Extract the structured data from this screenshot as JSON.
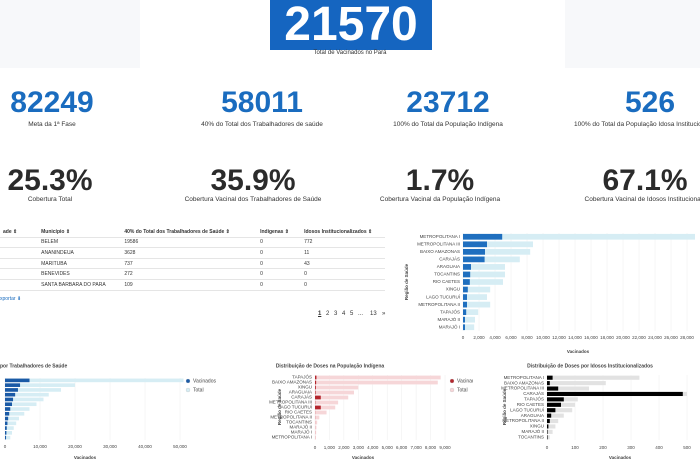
{
  "header": {
    "value": 21570,
    "label": "Total de Vacinados no Pará"
  },
  "kpis": [
    {
      "value": 82249,
      "label": "Meta da 1ª Fase"
    },
    {
      "value": 58011,
      "label": "40% do Total dos Trabalhadores de saúde"
    },
    {
      "value": 23712,
      "label": "100% do Total da População Indígena"
    },
    {
      "value": 526,
      "label": "100% do Total da População Idosa Institucionalizada"
    }
  ],
  "coverage": [
    {
      "value": "25.3%",
      "label": "Cobertura Total"
    },
    {
      "value": "35.9%",
      "label": "Cobertura Vacinal dos Trabalhadores de Saúde"
    },
    {
      "value": "1.7%",
      "label": "Cobertura Vacinal da População Indígena"
    },
    {
      "value": "67.1%",
      "label": "Cobertura Vacinal de Idosos Institucionais"
    }
  ],
  "table": {
    "columns": [
      "ade ⇕",
      "Município ⇕",
      "40% do Total dos Trabalhadores de Saúde ⇕",
      "Indígenas ⇕",
      "Idosos Institucionalizados ⇕"
    ],
    "rows": [
      [
        "BELEM",
        19586,
        0,
        772
      ],
      [
        "ANANINDEUA",
        3628,
        0,
        11
      ],
      [
        "MARITUBA",
        737,
        0,
        43
      ],
      [
        "BENEVIDES",
        272,
        0,
        0
      ],
      [
        "SANTA BARBARA DO PARA",
        109,
        0,
        0
      ]
    ],
    "export": "xportar ⬇",
    "pages": [
      "1",
      "2",
      "3",
      "4",
      "5",
      "...",
      "13",
      "»"
    ]
  },
  "charts": [
    {
      "type": "bar",
      "ylabel": "Região de Saúde",
      "xlabel": "Vacinados",
      "grid": true,
      "categories": [
        "METROPOLITANA I",
        "METROPOLITANA III",
        "BAIXO AMAZONAS",
        "CARAJÁS",
        "ARAGUAIA",
        "TOCANTINS",
        "RIO CAETES",
        "XINGU",
        "LAGO TUCURUÍ",
        "METROPOLITANA II",
        "TAPAJÓS",
        "MARAJÓ II",
        "MARAJÓ I"
      ],
      "series": [
        {
          "name": "Vacinados",
          "color": "#1f6fbf",
          "values": [
            4900,
            3000,
            2750,
            2700,
            1000,
            900,
            850,
            600,
            500,
            500,
            400,
            250,
            250
          ]
        },
        {
          "name": "Total",
          "color": "#d6edf4",
          "values": [
            29000,
            8750,
            8400,
            7100,
            5250,
            5250,
            5000,
            3400,
            3000,
            3400,
            1900,
            1500,
            1400
          ]
        }
      ],
      "xlim": [
        0,
        28000
      ],
      "xticks": [
        0,
        {
          "value": 2000,
          "label": "2,000"
        },
        {
          "value": 4000,
          "label": "4,000"
        },
        {
          "value": 6000,
          "label": "6,000"
        },
        {
          "value": 8000,
          "label": "8,000"
        },
        {
          "value": 10000,
          "label": "10,000"
        },
        {
          "value": 12000,
          "label": "12,000"
        },
        {
          "value": 14000,
          "label": "14,000"
        },
        {
          "value": 16000,
          "label": "16,000"
        },
        {
          "value": 18000,
          "label": "18,000"
        },
        {
          "value": 20000,
          "label": "20,000"
        },
        {
          "value": 22000,
          "label": "22,000"
        },
        {
          "value": 24000,
          "label": "24,000"
        },
        {
          "value": 26000,
          "label": "26,000"
        },
        {
          "value": 28000,
          "label": "28,000"
        }
      ]
    },
    {
      "type": "bar",
      "title": "por Trabalhadores de Saúde",
      "xlabel": "Vacinados",
      "grid": true,
      "legend": "right",
      "categories": [
        null,
        null,
        null,
        null,
        null,
        null,
        null,
        null,
        null,
        null,
        null,
        null,
        null
      ],
      "series": [
        {
          "name": "Vacinados",
          "color": "#1a5aa6",
          "values": [
            7000,
            4300,
            3700,
            2900,
            2300,
            2000,
            1500,
            1200,
            900,
            700,
            500,
            400,
            300
          ]
        },
        {
          "name": "Total",
          "color": "#d6edf4",
          "values": [
            51000,
            20000,
            16000,
            12500,
            11000,
            9000,
            7000,
            5500,
            4000,
            3200,
            2500,
            2000,
            1500
          ]
        }
      ],
      "xlim": [
        0,
        50000
      ],
      "xticks": [
        0,
        {
          "value": 10000,
          "label": "10,000"
        },
        {
          "value": 20000,
          "label": "20,000"
        },
        {
          "value": 30000,
          "label": "30,000"
        },
        {
          "value": 40000,
          "label": "40,000"
        },
        {
          "value": 50000,
          "label": "50,000"
        }
      ]
    },
    {
      "type": "bar",
      "title": "Distribuição de Doses na População Indígena",
      "ylabel": "Região de Saúde",
      "xlabel": "Vacinados",
      "grid": true,
      "legend": "right",
      "categories": [
        "TAPAJÓS",
        "BAIXO AMAZONAS",
        "XINGU",
        "ARAGUAIA",
        "CARAJÁS",
        "METROPOLITANA III",
        "LAGO TUCURUÍ",
        "RIO CAETES",
        "METROPOLITANA II",
        "TOCANTINS",
        "MARAJÓ II",
        "MARAJÓ I",
        "METROPOLITANA I"
      ],
      "series": [
        {
          "name": "Vacinados",
          "color": "#b3262d",
          "values": [
            100,
            80,
            60,
            40,
            400,
            20,
            400,
            10,
            10,
            5,
            5,
            5,
            5
          ]
        },
        {
          "name": "Total",
          "color": "#f6d6d8",
          "values": [
            8700,
            8500,
            3000,
            2700,
            2300,
            1600,
            1400,
            800,
            300,
            150,
            100,
            80,
            60
          ]
        }
      ],
      "xlim": [
        0,
        9000
      ],
      "xticks": [
        0,
        {
          "value": 1000,
          "label": "1,000"
        },
        {
          "value": 2000,
          "label": "2,000"
        },
        {
          "value": 3000,
          "label": "3,000"
        },
        {
          "value": 4000,
          "label": "4,000"
        },
        {
          "value": 5000,
          "label": "5,000"
        },
        {
          "value": 6000,
          "label": "6,000"
        },
        {
          "value": 7000,
          "label": "7,000"
        },
        {
          "value": 8000,
          "label": "8,000"
        },
        {
          "value": 9000,
          "label": "9,000"
        }
      ]
    },
    {
      "type": "bar",
      "title": "Distribuição de Doses por Idosos Institucionalizados",
      "ylabel": "Região de Saúde",
      "xlabel": "Vacinados",
      "grid": true,
      "categories": [
        "METROPOLITANA I",
        "BAIXO AMAZONAS",
        "METROPOLITANA III",
        "CARAJÁS",
        "TAPAJÓS",
        "RIO CAETES",
        "LAGO TUCURUÍ",
        "ARAGUAIA",
        "METROPOLITANA II",
        "XINGU",
        "MARAJÓ II",
        "TOCANTINS"
      ],
      "series": [
        {
          "name": "Vacinados",
          "color": "#000000",
          "values": [
            20,
            10,
            40,
            485,
            60,
            50,
            30,
            15,
            10,
            5,
            2,
            2
          ]
        },
        {
          "name": "Total",
          "color": "#e2e2e2",
          "values": [
            330,
            210,
            150,
            500,
            110,
            100,
            90,
            60,
            40,
            30,
            20,
            10
          ]
        }
      ],
      "xlim": [
        0,
        500
      ],
      "xticks": [
        0,
        100,
        200,
        300,
        400,
        500
      ]
    }
  ]
}
